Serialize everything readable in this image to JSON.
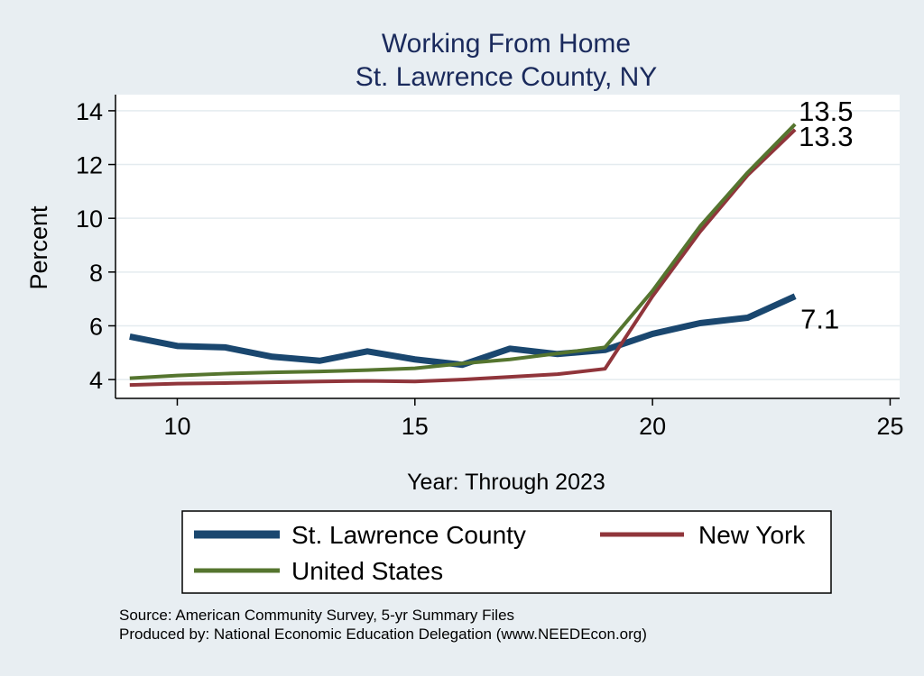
{
  "chart_data": {
    "type": "line",
    "title": "Working From Home",
    "subtitle": "St. Lawrence County, NY",
    "xlabel": "Year: Through 2023",
    "ylabel": "Percent",
    "xlim": [
      8.7,
      25.2
    ],
    "ylim": [
      3.3,
      14.6
    ],
    "xticks": [
      10,
      15,
      20,
      25
    ],
    "yticks": [
      4,
      6,
      8,
      10,
      12,
      14
    ],
    "grid": true,
    "legend_position": "bottom",
    "x": [
      9,
      10,
      11,
      12,
      13,
      14,
      15,
      16,
      17,
      18,
      19,
      20,
      21,
      22,
      23
    ],
    "series": [
      {
        "name": "St. Lawrence County",
        "color": "#1a476f",
        "values": [
          5.6,
          5.25,
          5.2,
          4.85,
          4.7,
          5.05,
          4.75,
          4.55,
          5.15,
          4.95,
          5.1,
          5.7,
          6.1,
          6.3,
          7.1
        ],
        "end_label": "7.1"
      },
      {
        "name": "New York",
        "color": "#90353b",
        "values": [
          3.8,
          3.85,
          3.87,
          3.9,
          3.93,
          3.95,
          3.93,
          4.0,
          4.1,
          4.2,
          4.4,
          7.1,
          9.5,
          11.6,
          13.3
        ],
        "end_label": "13.3"
      },
      {
        "name": "United States",
        "color": "#55752f",
        "values": [
          4.05,
          4.15,
          4.22,
          4.27,
          4.3,
          4.35,
          4.42,
          4.6,
          4.75,
          4.97,
          5.2,
          7.3,
          9.7,
          11.7,
          13.5
        ],
        "end_label": "13.5"
      }
    ]
  },
  "notes": {
    "source": "Source: American Community Survey, 5-yr Summary Files",
    "produced_by": "Produced by: National Economic Education Delegation (www.NEEDEcon.org)"
  },
  "colors": {
    "background": "#e8eef2",
    "plot_background": "#ffffff",
    "title": "#1a2a5c"
  }
}
